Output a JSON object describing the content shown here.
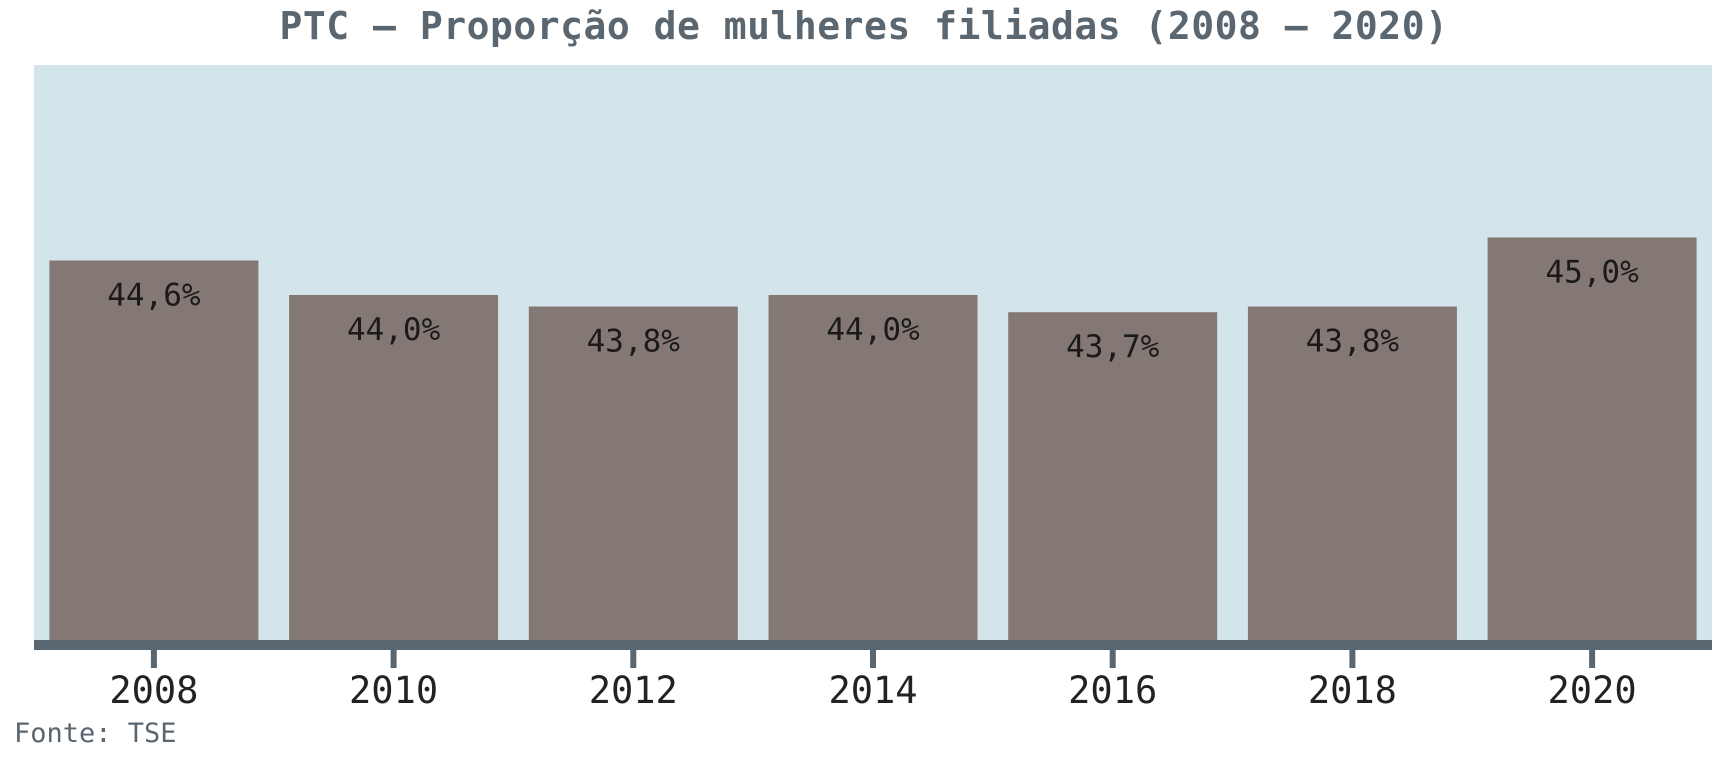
{
  "chart_data": {
    "type": "bar",
    "title": "PTC – Proporção de mulheres filiadas (2008 – 2020)",
    "categories": [
      "2008",
      "2010",
      "2012",
      "2014",
      "2016",
      "2018",
      "2020"
    ],
    "values": [
      44.6,
      44.0,
      43.8,
      44.0,
      43.7,
      43.8,
      45.0
    ],
    "data_labels": [
      "44,6%",
      "44,0%",
      "43,8%",
      "44,0%",
      "43,7%",
      "43,8%",
      "45,0%"
    ],
    "xlabel": "",
    "ylabel": "",
    "ylim": [
      38.0,
      48.0
    ],
    "grid": false,
    "legend": "none",
    "y_axis_visible": false
  },
  "source": "Fonte: TSE",
  "colors": {
    "plot_background": "#d4e4eb",
    "bar": "#837874",
    "axis": "#5a6670",
    "title": "#5a6670",
    "label": "#1a1a1a"
  }
}
